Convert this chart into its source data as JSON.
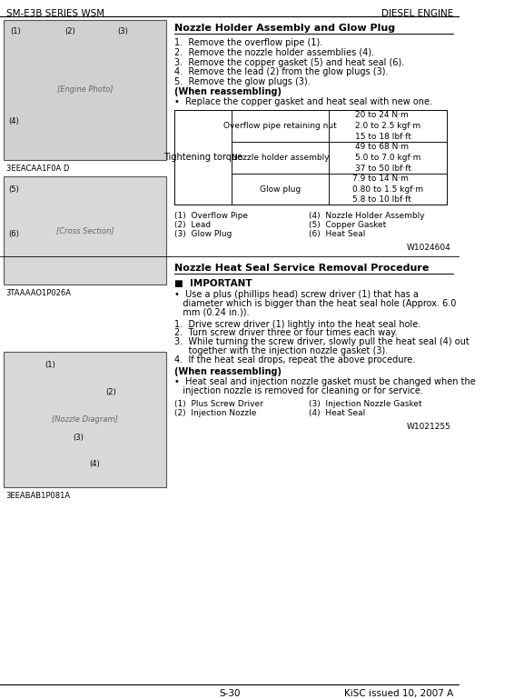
{
  "header_left": "SM-E3B SERIES WSM",
  "header_right": "DIESEL ENGINE",
  "footer_center": "S-30",
  "footer_right": "KiSC issued 10, 2007 A",
  "section1_title": "Nozzle Holder Assembly and Glow Plug",
  "section1_steps": [
    "1.  Remove the overflow pipe (1).",
    "2.  Remove the nozzle holder assemblies (4).",
    "3.  Remove the copper gasket (5) and heat seal (6).",
    "4.  Remove the lead (2) from the glow plugs (3).",
    "5.  Remove the glow plugs (3)."
  ],
  "reassembling_title": "(When reassembling)",
  "reassembling_text": "•  Replace the copper gasket and heat seal with new one.",
  "table_col1": "Tightening torque",
  "table_rows": [
    {
      "col2": "Overflow pipe retaining nut",
      "col3": "20 to 24 N·m\n2.0 to 2.5 kgf·m\n15 to 18 lbf·ft"
    },
    {
      "col2": "Nozzle holder assembly",
      "col3": "49 to 68 N·m\n5.0 to 7.0 kgf·m\n37 to 50 lbf·ft"
    },
    {
      "col2": "Glow plug",
      "col3": "7.9 to 14 N·m\n0.80 to 1.5 kgf·m\n5.8 to 10 lbf·ft"
    }
  ],
  "legend1": [
    "(1)  Overflow Pipe",
    "(2)  Lead",
    "(3)  Glow Plug"
  ],
  "legend2": [
    "(4)  Nozzle Holder Assembly",
    "(5)  Copper Gasket",
    "(6)  Heat Seal"
  ],
  "ref1": "W1024604",
  "section2_title": "Nozzle Heat Seal Service Removal Procedure",
  "important_title": "■  IMPORTANT",
  "important_text": "•  Use a plus (phillips head) screw driver (1) that has a diameter which is bigger than the heat seal hole (Approx. 6.0 mm (0.24 in.)).",
  "section2_steps": [
    "1.  Drive screw driver (1) lightly into the heat seal hole.",
    "2.  Turn screw driver three or four times each way.",
    "3.  While turning the screw driver, slowly pull the heat seal (4) out\n     together with the injection nozzle gasket (3).",
    "4.  If the heat seal drops, repeat the above procedure."
  ],
  "reassembling2_title": "(When reassembling)",
  "reassembling2_text": "•  Heat seal and injection nozzle gasket must be changed when the\n   injection nozzle is removed for cleaning or for service.",
  "legend3": [
    "(1)  Plus Screw Driver",
    "(2)  Injection Nozzle"
  ],
  "legend4": [
    "(3)  Injection Nozzle Gasket",
    "(4)  Heat Seal"
  ],
  "ref2": "W1021255",
  "bg_color": "#ffffff",
  "text_color": "#000000",
  "header_color": "#000000",
  "border_color": "#000000",
  "image1_label": "3EEACAA1F0A D",
  "image2_label": "3TAAAAO1P026A",
  "image3_label": "3EEABAB1P081A"
}
